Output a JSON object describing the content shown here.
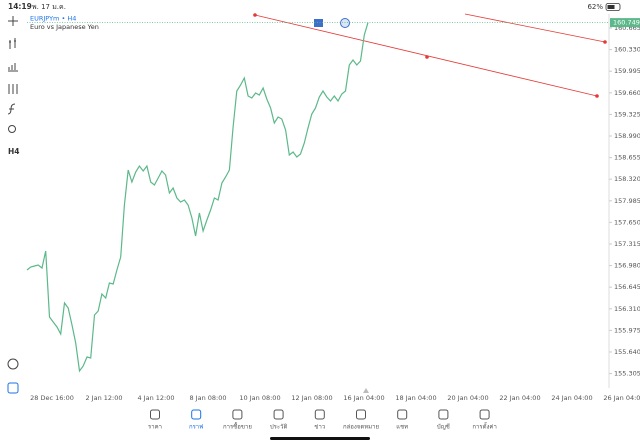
{
  "status_bar": {
    "time": "14:19",
    "date": "พ. 17 ม.ค.",
    "battery": "62%"
  },
  "chart_header": {
    "symbol": "EURJPYm • H4",
    "description": "Euro vs Japanese Yen"
  },
  "toolbar": {
    "timeframe": "H4"
  },
  "chart_data": {
    "type": "line",
    "color": "#5cb88a",
    "values": [
      156.912,
      156.958,
      156.974,
      156.989,
      156.943,
      157.206,
      156.183,
      156.105,
      156.028,
      155.919,
      156.4,
      156.322,
      156.059,
      155.779,
      155.345,
      155.423,
      155.562,
      155.547,
      156.214,
      156.276,
      156.539,
      156.477,
      156.71,
      156.694,
      156.912,
      157.113,
      157.92,
      158.463,
      158.276,
      158.432,
      158.525,
      158.447,
      158.525,
      158.276,
      158.23,
      158.338,
      158.447,
      158.385,
      158.106,
      158.183,
      158.028,
      157.966,
      157.997,
      157.92,
      157.718,
      157.439,
      157.796,
      157.516,
      157.687,
      157.842,
      158.028,
      157.997,
      158.261,
      158.354,
      158.463,
      159.13,
      159.688,
      159.781,
      159.889,
      159.61,
      159.579,
      159.657,
      159.626,
      159.734,
      159.564,
      159.424,
      159.192,
      159.285,
      159.254,
      159.083,
      158.695,
      158.742,
      158.664,
      158.711,
      158.881,
      159.114,
      159.331,
      159.424,
      159.595,
      159.688,
      159.595,
      159.533,
      159.61,
      159.533,
      159.641,
      159.688,
      160.091,
      160.169,
      160.091,
      160.153,
      160.556,
      160.749
    ],
    "last_price": 160.749,
    "ylim": [
      155.081,
      160.867
    ],
    "yticks": [
      160.665,
      {
        "value": 160.33,
        "label": "160.330"
      },
      159.995,
      {
        "value": 159.66,
        "label": "159.660"
      },
      159.325,
      {
        "value": 158.99,
        "label": "158.990"
      },
      158.655,
      {
        "value": 158.32,
        "label": "158.320"
      },
      157.985,
      {
        "value": 157.65,
        "label": "157.650"
      },
      157.315,
      {
        "value": 156.98,
        "label": "156.980"
      },
      156.645,
      {
        "value": 156.31,
        "label": "156.310"
      },
      155.975,
      {
        "value": 155.64,
        "label": "155.640"
      },
      155.305
    ],
    "x_axis_labels": [
      "28 Dec 16:00",
      "2 Jan 12:00",
      "4 Jan 12:00",
      "8 Jan 08:00",
      "10 Jan 08:00",
      "12 Jan 08:00",
      "16 Jan 04:00",
      "18 Jan 04:00",
      "20 Jan 04:00",
      "22 Jan 04:00",
      "24 Jan 04:00",
      "26 Jan 04:00"
    ]
  },
  "tabs": [
    {
      "label": "ราคา",
      "active": false
    },
    {
      "label": "กราฟ",
      "active": true
    },
    {
      "label": "การซื้อขาย",
      "active": false
    },
    {
      "label": "ประวัติ",
      "active": false
    },
    {
      "label": "ข่าว",
      "active": false
    },
    {
      "label": "กล่องจดหมาย",
      "active": false
    },
    {
      "label": "แชท",
      "active": false
    },
    {
      "label": "บัญชี",
      "active": false
    },
    {
      "label": "การตั้งค่า",
      "active": false
    }
  ]
}
